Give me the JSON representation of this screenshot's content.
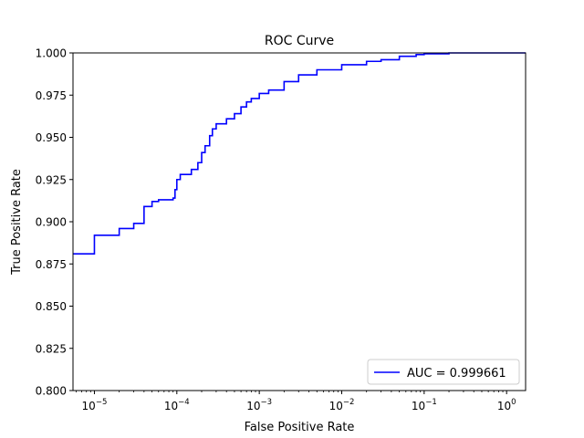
{
  "chart_data": {
    "type": "line",
    "title": "ROC Curve",
    "xlabel": "False Positive Rate",
    "ylabel": "True Positive Rate",
    "xscale": "log",
    "xlim": [
      5.5e-06,
      1.7
    ],
    "ylim": [
      0.8,
      1.0
    ],
    "x_ticks": [
      {
        "value": 1e-05,
        "base": "10",
        "exp": "−5"
      },
      {
        "value": 0.0001,
        "base": "10",
        "exp": "−4"
      },
      {
        "value": 0.001,
        "base": "10",
        "exp": "−3"
      },
      {
        "value": 0.01,
        "base": "10",
        "exp": "−2"
      },
      {
        "value": 0.1,
        "base": "10",
        "exp": "−1"
      },
      {
        "value": 1,
        "base": "10",
        "exp": "0"
      }
    ],
    "y_ticks": [
      {
        "value": 0.8,
        "label": "0.800"
      },
      {
        "value": 0.825,
        "label": "0.825"
      },
      {
        "value": 0.85,
        "label": "0.850"
      },
      {
        "value": 0.875,
        "label": "0.875"
      },
      {
        "value": 0.9,
        "label": "0.900"
      },
      {
        "value": 0.925,
        "label": "0.925"
      },
      {
        "value": 0.95,
        "label": "0.950"
      },
      {
        "value": 0.975,
        "label": "0.975"
      },
      {
        "value": 1.0,
        "label": "1.000"
      }
    ],
    "grid": false,
    "legend_position": "lower-right",
    "series": [
      {
        "name": "AUC = 0.999661",
        "color": "#0000ff",
        "step": true,
        "x": [
          5.5e-06,
          1e-05,
          2e-05,
          3e-05,
          4e-05,
          5e-05,
          6e-05,
          9e-05,
          9.5e-05,
          0.0001,
          0.00011,
          0.00015,
          0.00018,
          0.0002,
          0.00022,
          0.00025,
          0.00027,
          0.0003,
          0.0004,
          0.0005,
          0.0006,
          0.0007,
          0.0008,
          0.001,
          0.0013,
          0.002,
          0.003,
          0.005,
          0.01,
          0.02,
          0.03,
          0.05,
          0.08,
          0.1,
          0.2,
          1.7
        ],
        "y": [
          0.881,
          0.892,
          0.896,
          0.899,
          0.909,
          0.912,
          0.913,
          0.914,
          0.919,
          0.925,
          0.928,
          0.931,
          0.935,
          0.941,
          0.945,
          0.951,
          0.955,
          0.958,
          0.961,
          0.964,
          0.968,
          0.971,
          0.973,
          0.976,
          0.978,
          0.983,
          0.987,
          0.99,
          0.993,
          0.995,
          0.996,
          0.998,
          0.999,
          0.9995,
          1.0,
          1.0
        ]
      }
    ]
  }
}
